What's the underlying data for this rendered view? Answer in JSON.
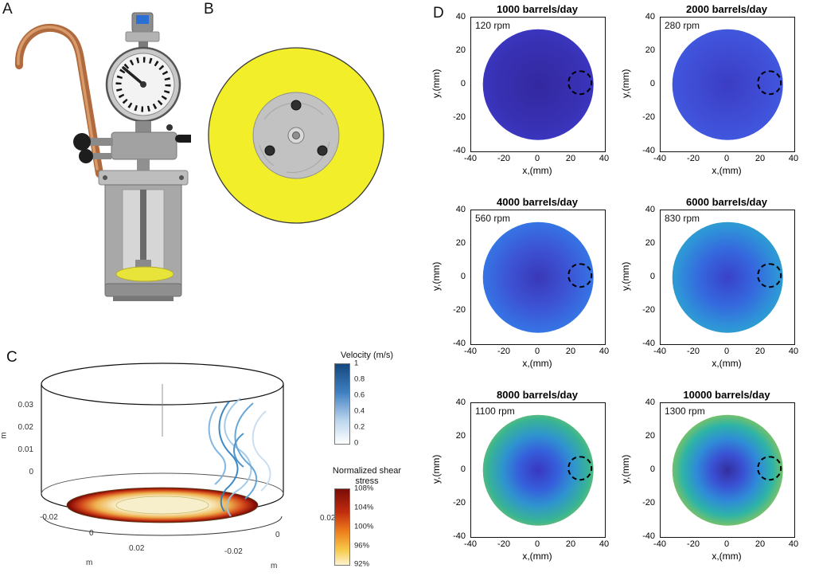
{
  "panel_labels": {
    "a": "A",
    "b": "B",
    "c": "C",
    "d": "D"
  },
  "chart_data": [
    {
      "id": "panel-c-3d-simulation",
      "type": "3d-streamline",
      "z_ticks": [
        "0.03",
        "0.02",
        "0.01",
        "0"
      ],
      "x_axis_ticks": [
        "-0.02",
        "0",
        "0.02"
      ],
      "y_axis_ticks": [
        "-0.02",
        "0",
        "0.02"
      ],
      "axis_units": {
        "z": "m",
        "x": "m",
        "y": "m"
      },
      "colorbars": [
        {
          "title": "Velocity (m/s)",
          "ticks": [
            "1",
            "0.8",
            "0.6",
            "0.4",
            "0.2",
            "0"
          ],
          "gradient": [
            [
              "0%",
              "#14477e"
            ],
            [
              "35%",
              "#3e7fc1"
            ],
            [
              "70%",
              "#b8d4ec"
            ],
            [
              "100%",
              "#ffffff"
            ]
          ]
        },
        {
          "title_line1": "Normalized shear",
          "title_line2": "stress",
          "ticks": [
            "108%",
            "104%",
            "100%",
            "96%",
            "92%"
          ],
          "gradient": [
            [
              "0%",
              "#7a0c06"
            ],
            [
              "30%",
              "#c02c0e"
            ],
            [
              "55%",
              "#ec7c1c"
            ],
            [
              "80%",
              "#f7c948"
            ],
            [
              "100%",
              "#fdf3cf"
            ]
          ]
        }
      ]
    },
    {
      "id": "panel-d-velocity-heatmaps",
      "type": "heatmap",
      "xlabel": "x,(mm)",
      "ylabel": "y,(mm)",
      "xticks": [
        "-40",
        "-20",
        "0",
        "20",
        "40"
      ],
      "yticks": [
        "40",
        "20",
        "0",
        "-20",
        "-40"
      ],
      "xlim": [
        -40,
        40
      ],
      "ylim": [
        -40,
        40
      ],
      "disk_radius_mm": 33,
      "probe_circle": {
        "x_mm": 25,
        "y_mm": 1,
        "r_mm": 7.5
      },
      "subplots": [
        {
          "title": "1000 barrels/day",
          "rpm": "120 rpm",
          "gradient": [
            [
              "0%",
              "#33289f"
            ],
            [
              "55%",
              "#3831b4"
            ],
            [
              "100%",
              "#3f3fd2"
            ]
          ]
        },
        {
          "title": "2000 barrels/day",
          "rpm": "280 rpm",
          "gradient": [
            [
              "0%",
              "#3b3dc4"
            ],
            [
              "55%",
              "#4050d8"
            ],
            [
              "100%",
              "#4064e6"
            ]
          ]
        },
        {
          "title": "4000 barrels/day",
          "rpm": "560 rpm",
          "gradient": [
            [
              "0%",
              "#3a38b8"
            ],
            [
              "40%",
              "#3c55d6"
            ],
            [
              "75%",
              "#3579e6"
            ],
            [
              "100%",
              "#2f8ce9"
            ]
          ]
        },
        {
          "title": "6000 barrels/day",
          "rpm": "830 rpm",
          "gradient": [
            [
              "0%",
              "#3a41ca"
            ],
            [
              "35%",
              "#3567de"
            ],
            [
              "65%",
              "#2e95d8"
            ],
            [
              "100%",
              "#2eb7a6"
            ]
          ]
        },
        {
          "title": "8000 barrels/day",
          "rpm": "1100 rpm",
          "gradient": [
            [
              "0%",
              "#3937c1"
            ],
            [
              "25%",
              "#355fdc"
            ],
            [
              "45%",
              "#2f93d0"
            ],
            [
              "65%",
              "#38b494"
            ],
            [
              "82%",
              "#8fc45b"
            ],
            [
              "100%",
              "#c9cf36"
            ]
          ]
        },
        {
          "title": "10000 barrels/day",
          "rpm": "1300 rpm",
          "gradient": [
            [
              "0%",
              "#342e9e"
            ],
            [
              "20%",
              "#3a50d4"
            ],
            [
              "40%",
              "#2f8bd8"
            ],
            [
              "58%",
              "#2eb4a6"
            ],
            [
              "74%",
              "#85c45d"
            ],
            [
              "87%",
              "#d9d934"
            ],
            [
              "100%",
              "#f2e62c"
            ]
          ]
        }
      ]
    }
  ]
}
